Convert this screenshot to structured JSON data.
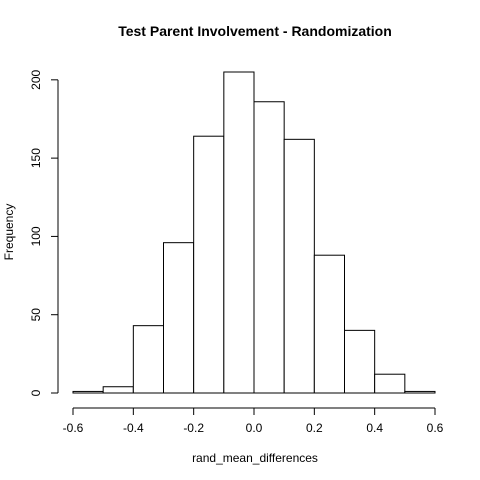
{
  "chart_data": {
    "type": "bar",
    "title": "Test Parent Involvement - Randomization",
    "xlabel": "rand_mean_differences",
    "ylabel": "Frequency",
    "bins": [
      {
        "x0": -0.6,
        "x1": -0.5,
        "count": 1
      },
      {
        "x0": -0.5,
        "x1": -0.4,
        "count": 4
      },
      {
        "x0": -0.4,
        "x1": -0.3,
        "count": 43
      },
      {
        "x0": -0.3,
        "x1": -0.2,
        "count": 96
      },
      {
        "x0": -0.2,
        "x1": -0.1,
        "count": 164
      },
      {
        "x0": -0.1,
        "x1": 0.0,
        "count": 205
      },
      {
        "x0": 0.0,
        "x1": 0.1,
        "count": 186
      },
      {
        "x0": 0.1,
        "x1": 0.2,
        "count": 162
      },
      {
        "x0": 0.2,
        "x1": 0.3,
        "count": 88
      },
      {
        "x0": 0.3,
        "x1": 0.4,
        "count": 40
      },
      {
        "x0": 0.4,
        "x1": 0.5,
        "count": 12
      },
      {
        "x0": 0.5,
        "x1": 0.6,
        "count": 1
      }
    ],
    "xlim": [
      -0.6,
      0.6
    ],
    "ylim": [
      0,
      205
    ],
    "xticks": [
      "-0.6",
      "-0.4",
      "-0.2",
      "0.0",
      "0.2",
      "0.4",
      "0.6"
    ],
    "xtick_values": [
      -0.6,
      -0.4,
      -0.2,
      0.0,
      0.2,
      0.4,
      0.6
    ],
    "yticks": [
      "0",
      "50",
      "100",
      "150",
      "200"
    ],
    "ytick_values": [
      0,
      50,
      100,
      150,
      200
    ],
    "grid": false,
    "legend": "none",
    "colors": {
      "bar_fill": "#ffffff",
      "bar_stroke": "#000000",
      "text": "#000000"
    }
  }
}
